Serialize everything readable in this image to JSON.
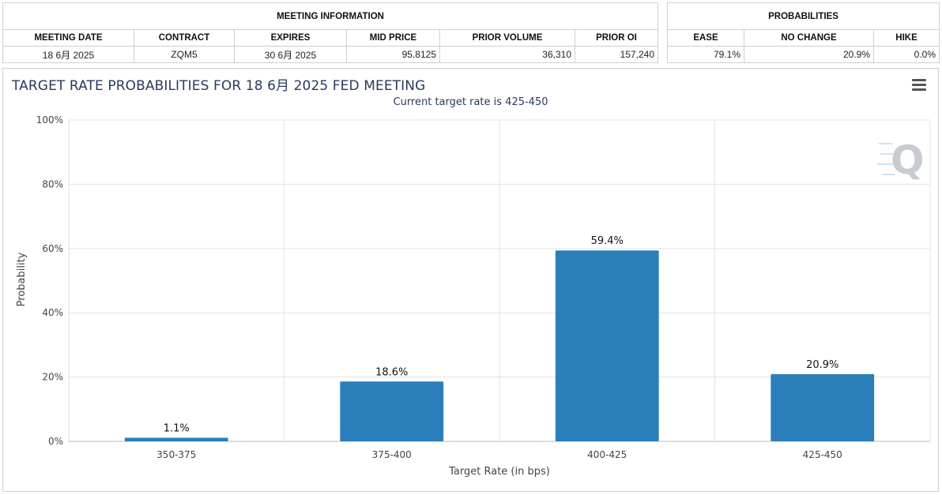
{
  "meeting": {
    "header": "MEETING INFORMATION",
    "columns": [
      "MEETING DATE",
      "CONTRACT",
      "EXPIRES",
      "MID PRICE",
      "PRIOR VOLUME",
      "PRIOR OI"
    ],
    "row": [
      "18 6月 2025",
      "ZQM5",
      "30 6月 2025",
      "95.8125",
      "36,310",
      "157,240"
    ]
  },
  "probabilities": {
    "header": "PROBABILITIES",
    "columns": [
      "EASE",
      "NO CHANGE",
      "HIKE"
    ],
    "row": [
      "79.1%",
      "20.9%",
      "0.0%"
    ]
  },
  "logo_icon": "q-watermark-icon",
  "menu_icon": "hamburger-menu-icon",
  "accent_color": "#2a7fba",
  "chart_data": {
    "type": "bar",
    "title": "TARGET RATE PROBABILITIES FOR 18 6月 2025 FED MEETING",
    "subtitle": "Current target rate is 425-450",
    "categories": [
      "350-375",
      "375-400",
      "400-425",
      "425-450"
    ],
    "values": [
      1.1,
      18.6,
      59.4,
      20.9
    ],
    "data_labels": [
      "1.1%",
      "18.6%",
      "59.4%",
      "20.9%"
    ],
    "xlabel": "Target Rate (in bps)",
    "ylabel": "Probability",
    "ylim": [
      0,
      100
    ],
    "yticks": [
      0,
      20,
      40,
      60,
      80,
      100
    ],
    "ytick_labels": [
      "0%",
      "20%",
      "40%",
      "60%",
      "80%",
      "100%"
    ],
    "grid": true,
    "color": "#2a7fba"
  }
}
